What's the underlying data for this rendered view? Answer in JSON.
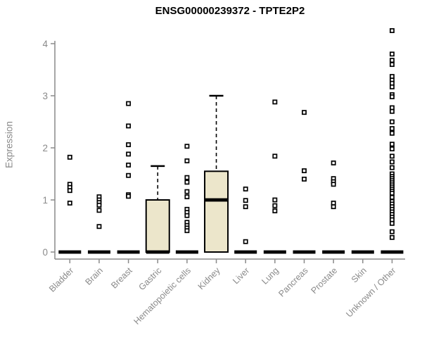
{
  "chart_data": {
    "type": "box",
    "title": "ENSG00000239372 - TPTE2P2",
    "xlabel": "",
    "ylabel": "Expression",
    "ylim": [
      0,
      4.3
    ],
    "yticks": [
      0,
      1,
      2,
      3,
      4
    ],
    "grid": false,
    "legend": "none",
    "box_fill": "#ece6cb",
    "mark_color": "#000000",
    "axis_color": "#8a8a8a",
    "categories": [
      "Bladder",
      "Brain",
      "Breast",
      "Gastric",
      "Hematopoietic cells",
      "Kidney",
      "Liver",
      "Lung",
      "Pancreas",
      "Prostate",
      "Skin",
      "Unknown / Other"
    ],
    "groups": [
      {
        "name": "Bladder",
        "median": 0,
        "box": null,
        "points": [
          1.82,
          1.3,
          1.24,
          1.18,
          0.94
        ]
      },
      {
        "name": "Brain",
        "median": 0,
        "box": null,
        "points": [
          1.06,
          1.0,
          0.95,
          0.9,
          0.8,
          0.49
        ]
      },
      {
        "name": "Breast",
        "median": 0,
        "box": null,
        "points": [
          2.85,
          2.42,
          2.06,
          1.88,
          1.67,
          1.47,
          1.1,
          1.07
        ]
      },
      {
        "name": "Gastric",
        "median": 0,
        "box": {
          "q1": 0,
          "q3": 1.0,
          "whisker_high": 1.65
        },
        "points": []
      },
      {
        "name": "Hematopoietic cells",
        "median": 0,
        "box": null,
        "points": [
          2.03,
          1.75,
          1.43,
          1.34,
          1.16,
          1.06,
          0.82,
          0.76,
          0.7,
          0.57,
          0.51,
          0.46,
          0.41
        ]
      },
      {
        "name": "Kidney",
        "median": 1.0,
        "box": {
          "q1": 0,
          "q3": 1.55,
          "whisker_high": 3.0
        },
        "points": []
      },
      {
        "name": "Liver",
        "median": 0,
        "box": null,
        "points": [
          1.21,
          0.99,
          0.87,
          0.2
        ]
      },
      {
        "name": "Lung",
        "median": 0,
        "box": null,
        "points": [
          2.88,
          1.84,
          1.0,
          0.89,
          0.79
        ]
      },
      {
        "name": "Pancreas",
        "median": 0,
        "box": null,
        "points": [
          2.68,
          1.56,
          1.4
        ]
      },
      {
        "name": "Prostate",
        "median": 0,
        "box": null,
        "points": [
          1.71,
          1.41,
          1.35,
          1.3,
          0.94,
          0.87
        ]
      },
      {
        "name": "Skin",
        "median": 0,
        "box": null,
        "points": []
      },
      {
        "name": "Unknown / Other",
        "median": 0,
        "box": null,
        "points": [
          4.25,
          3.8,
          3.68,
          3.6,
          3.37,
          3.3,
          3.24,
          3.17,
          3.02,
          2.98,
          2.77,
          2.7,
          2.5,
          2.37,
          2.28,
          2.07,
          1.98,
          1.84,
          1.73,
          1.62,
          1.5,
          1.45,
          1.41,
          1.37,
          1.33,
          1.29,
          1.25,
          1.21,
          1.17,
          1.13,
          1.05,
          0.97,
          0.92,
          0.87,
          0.82,
          0.77,
          0.72,
          0.67,
          0.62,
          0.55,
          0.39,
          0.28
        ]
      }
    ]
  }
}
